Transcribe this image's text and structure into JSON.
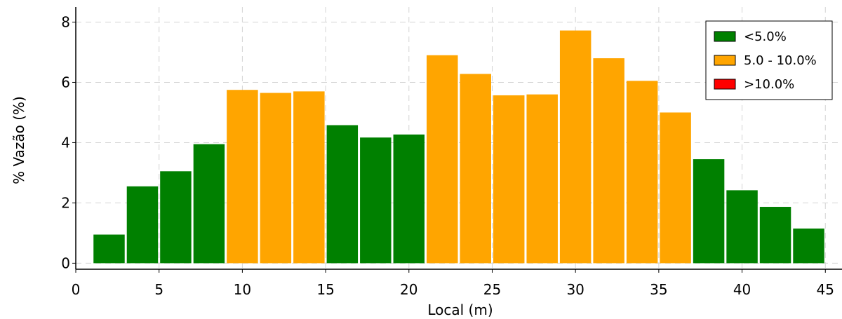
{
  "chart_data": {
    "type": "bar",
    "xlabel": "Local (m)",
    "ylabel": "% Vazão (%)",
    "xlim": [
      0,
      46
    ],
    "ylim": [
      -0.2,
      8.5
    ],
    "grid": true,
    "legend_position": "top-right",
    "x_ticks": [
      0,
      5,
      10,
      15,
      20,
      25,
      30,
      35,
      40,
      45
    ],
    "y_ticks": [
      0,
      2,
      4,
      6,
      8
    ],
    "bin_width": 2,
    "categories": [
      2,
      4,
      6,
      8,
      10,
      12,
      14,
      16,
      18,
      20,
      22,
      24,
      26,
      28,
      30,
      32,
      34,
      36,
      38,
      40,
      42,
      44
    ],
    "values": [
      0.95,
      2.55,
      3.05,
      3.95,
      5.75,
      5.65,
      5.7,
      4.58,
      4.17,
      4.27,
      6.9,
      6.28,
      5.57,
      5.6,
      7.72,
      6.8,
      6.05,
      5.0,
      3.45,
      2.42,
      1.87,
      1.15
    ],
    "bar_class": [
      "low",
      "low",
      "low",
      "low",
      "mid",
      "mid",
      "mid",
      "low",
      "low",
      "low",
      "mid",
      "mid",
      "mid",
      "mid",
      "mid",
      "mid",
      "mid",
      "mid",
      "low",
      "low",
      "low",
      "low"
    ],
    "legend": [
      {
        "key": "low",
        "label": "<5.0%",
        "color": "#008000"
      },
      {
        "key": "mid",
        "label": "5.0 - 10.0%",
        "color": "#ffa500"
      },
      {
        "key": "high",
        "label": ">10.0%",
        "color": "#ff0000"
      }
    ]
  }
}
